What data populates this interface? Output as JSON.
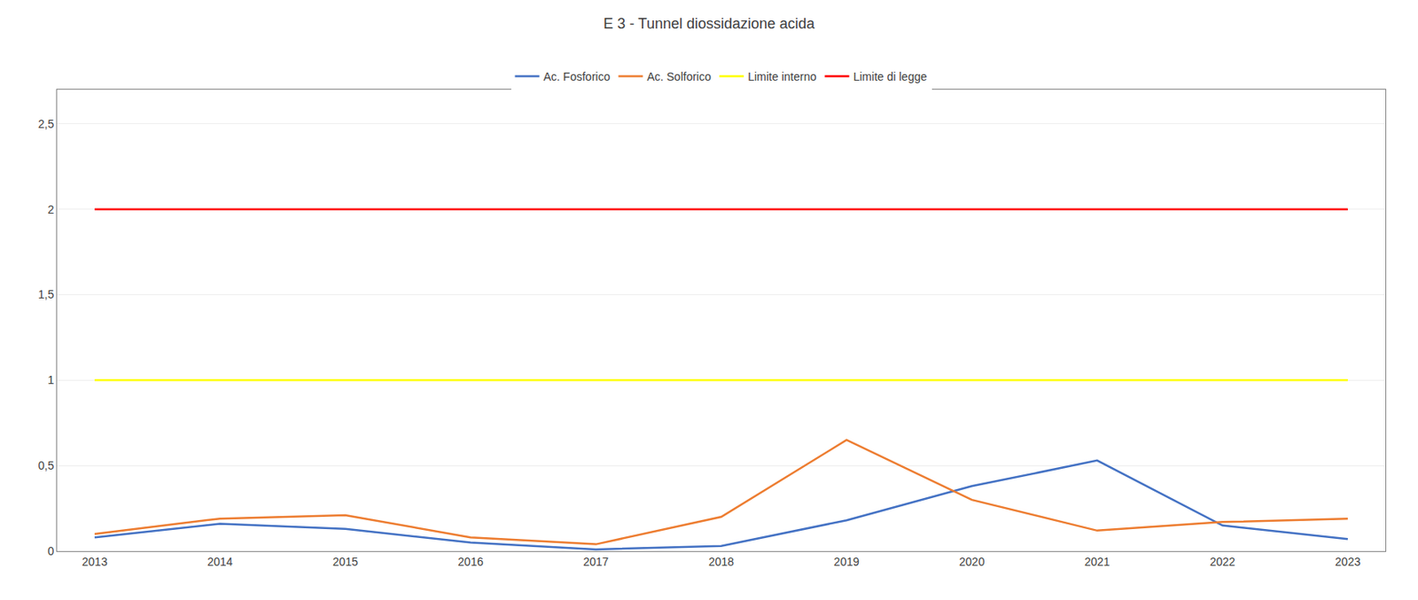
{
  "chart_data": {
    "type": "line",
    "title": "E 3 - Tunnel diossidazione acida",
    "x": [
      2013,
      2014,
      2015,
      2016,
      2017,
      2018,
      2019,
      2020,
      2021,
      2022,
      2023
    ],
    "series": [
      {
        "name": "Ac. Fosforico",
        "color": "#4472C4",
        "values": [
          0.08,
          0.16,
          0.13,
          0.05,
          0.01,
          0.03,
          0.18,
          0.38,
          0.53,
          0.15,
          0.07
        ]
      },
      {
        "name": "Ac. Solforico",
        "color": "#ED7D31",
        "values": [
          0.1,
          0.19,
          0.21,
          0.08,
          0.04,
          0.2,
          0.65,
          0.3,
          0.12,
          0.17,
          0.19
        ]
      },
      {
        "name": "Limite interno",
        "color": "#FFFF00",
        "values": [
          1.0,
          1.0,
          1.0,
          1.0,
          1.0,
          1.0,
          1.0,
          1.0,
          1.0,
          1.0,
          1.0
        ]
      },
      {
        "name": "Limite di legge",
        "color": "#FF0000",
        "values": [
          2.0,
          2.0,
          2.0,
          2.0,
          2.0,
          2.0,
          2.0,
          2.0,
          2.0,
          2.0,
          2.0
        ]
      }
    ],
    "xlim": [
      2012.7,
      2023.3
    ],
    "xticks": [
      2013,
      2014,
      2015,
      2016,
      2017,
      2018,
      2019,
      2020,
      2021,
      2022,
      2023
    ],
    "ylim": [
      0,
      2.7
    ],
    "yticks": [
      0,
      {
        "value": 0.5,
        "label": "0,5"
      },
      1,
      {
        "value": 1.5,
        "label": "1,5"
      },
      2,
      {
        "value": 2.5,
        "label": "2,5"
      }
    ],
    "grid": true,
    "legend": "top"
  }
}
